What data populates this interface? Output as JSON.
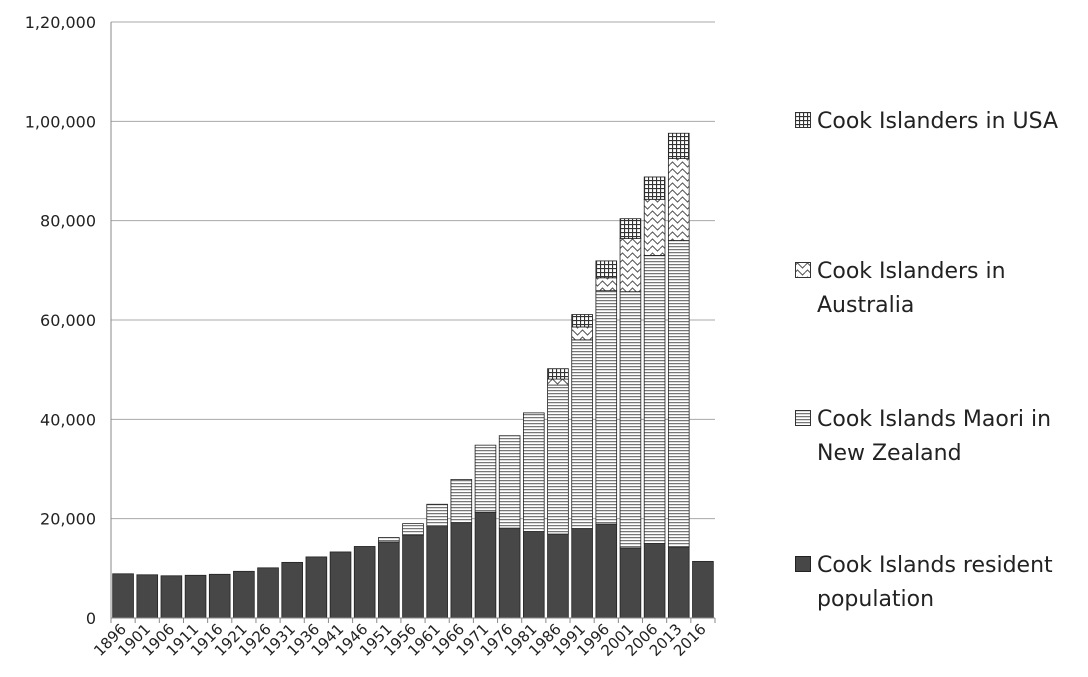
{
  "chart_data": {
    "type": "bar",
    "stacked": true,
    "categories": [
      "1896",
      "1901",
      "1906",
      "1911",
      "1916",
      "1921",
      "1926",
      "1931",
      "1936",
      "1941",
      "1946",
      "1951",
      "1956",
      "1961",
      "1966",
      "1971",
      "1976",
      "1981",
      "1986",
      "1991",
      "1996",
      "2001",
      "2006",
      "2013",
      "2016"
    ],
    "series": [
      {
        "name": "Cook Islands resident population",
        "pattern": "solid",
        "values": [
          8900,
          8700,
          8500,
          8600,
          8800,
          9400,
          10100,
          11200,
          12300,
          13300,
          14400,
          15300,
          16700,
          18400,
          19200,
          21300,
          18100,
          17400,
          16900,
          18000,
          18900,
          14100,
          15000,
          14300,
          11400
        ]
      },
      {
        "name": "Cook Islands Maori in New Zealand",
        "pattern": "horizontal-lines",
        "values": [
          0,
          0,
          0,
          0,
          0,
          0,
          0,
          0,
          0,
          0,
          0,
          900,
          2300,
          4500,
          8700,
          13500,
          18600,
          23900,
          30000,
          38000,
          47000,
          51600,
          58000,
          61700,
          0
        ]
      },
      {
        "name": "Cook Islanders in Australia",
        "pattern": "waves",
        "values": [
          0,
          0,
          0,
          0,
          0,
          0,
          0,
          0,
          0,
          0,
          0,
          0,
          0,
          0,
          0,
          0,
          0,
          0,
          1200,
          2600,
          2600,
          10700,
          11300,
          16500,
          0
        ]
      },
      {
        "name": "Cook Islanders in USA",
        "pattern": "grid",
        "values": [
          0,
          0,
          0,
          0,
          0,
          0,
          0,
          0,
          0,
          0,
          0,
          0,
          0,
          0,
          0,
          0,
          0,
          0,
          2100,
          2500,
          3400,
          4000,
          4500,
          5100,
          0
        ]
      }
    ],
    "y_ticks": [
      "0",
      "20,000",
      "40,000",
      "60,000",
      "80,000",
      "1,00,000",
      "1,20,000"
    ],
    "ylim": [
      0,
      120000
    ],
    "grid": true,
    "legend_position": "right",
    "colors": {
      "bar_fill": "#474747",
      "bar_stroke": "#222222",
      "grid": "#a8a8a8",
      "text": "#222222"
    }
  },
  "legend": [
    {
      "pattern": "grid",
      "label": "Cook Islanders in USA"
    },
    {
      "pattern": "waves",
      "label": "Cook Islanders in Australia"
    },
    {
      "pattern": "horizontal-lines",
      "label": "Cook Islands Maori in New Zealand"
    },
    {
      "pattern": "solid",
      "label": "Cook Islands resident population"
    }
  ]
}
